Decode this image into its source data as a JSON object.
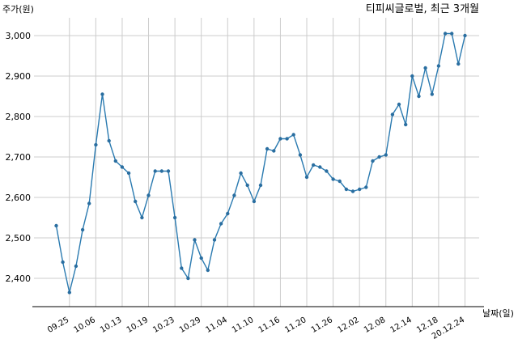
{
  "chart_data": {
    "type": "line",
    "title": "티피씨글로벌, 최근 3개월",
    "ylabel": "주가(원)",
    "xlabel": "날짜(일)",
    "ylim": [
      2335,
      3040
    ],
    "yticks": [
      2400,
      2500,
      2600,
      2700,
      2800,
      2900,
      3000
    ],
    "ytick_labels": [
      "2,400",
      "2,500",
      "2,600",
      "2,700",
      "2,800",
      "2,900",
      "3,000"
    ],
    "grid": true,
    "colors": {
      "line": "#2a7ab0",
      "marker": "#2a6ea0",
      "grid": "#cccccc"
    },
    "xtick_labels": [
      {
        "index": 2,
        "label": "09.25"
      },
      {
        "index": 6,
        "label": "10.06"
      },
      {
        "index": 10,
        "label": "10.13"
      },
      {
        "index": 14,
        "label": "10.19"
      },
      {
        "index": 18,
        "label": "10.23"
      },
      {
        "index": 22,
        "label": "10.29"
      },
      {
        "index": 26,
        "label": "11.04"
      },
      {
        "index": 30,
        "label": "11.10"
      },
      {
        "index": 34,
        "label": "11.16"
      },
      {
        "index": 38,
        "label": "11.20"
      },
      {
        "index": 42,
        "label": "11.26"
      },
      {
        "index": 46,
        "label": "12.02"
      },
      {
        "index": 50,
        "label": "12.08"
      },
      {
        "index": 54,
        "label": "12.14"
      },
      {
        "index": 58,
        "label": "12.18"
      },
      {
        "index": 62,
        "label": "20.12.24"
      }
    ],
    "values": [
      2530,
      2440,
      2365,
      2430,
      2520,
      2585,
      2730,
      2855,
      2740,
      2690,
      2675,
      2660,
      2590,
      2550,
      2605,
      2665,
      2665,
      2665,
      2550,
      2425,
      2400,
      2495,
      2450,
      2420,
      2495,
      2535,
      2560,
      2605,
      2660,
      2630,
      2590,
      2630,
      2720,
      2715,
      2745,
      2745,
      2755,
      2705,
      2650,
      2680,
      2675,
      2665,
      2645,
      2640,
      2620,
      2615,
      2620,
      2625,
      2690,
      2700,
      2705,
      2805,
      2830,
      2780,
      2900,
      2850,
      2920,
      2855,
      2925,
      3005,
      3005,
      2930,
      3000
    ]
  }
}
